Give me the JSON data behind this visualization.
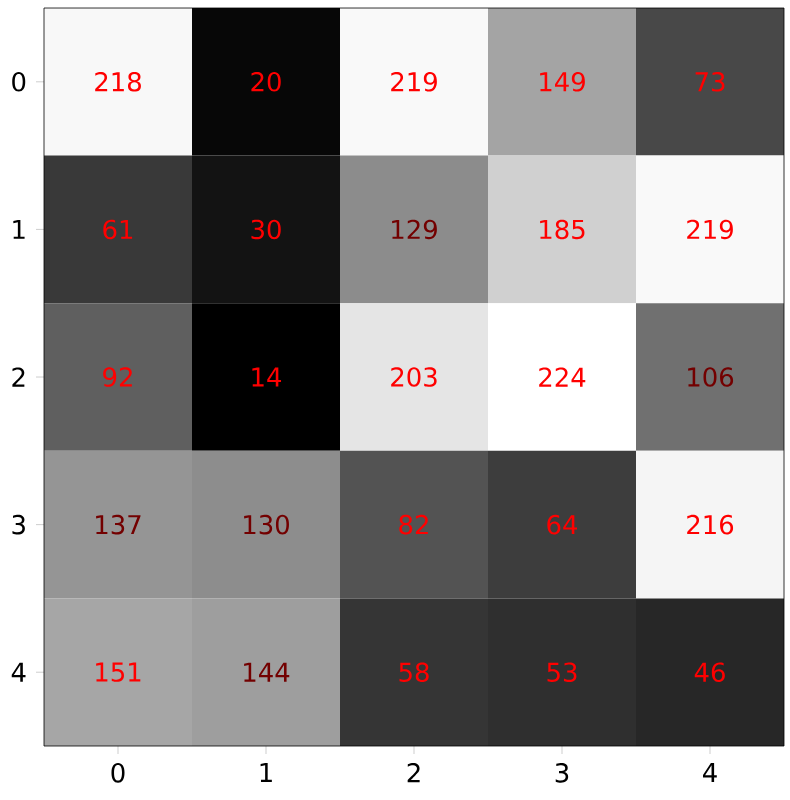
{
  "chart_data": {
    "type": "heatmap",
    "categories": [
      "0",
      "1",
      "2",
      "3",
      "4"
    ],
    "y_categories": [
      "0",
      "1",
      "2",
      "3",
      "4"
    ],
    "cells": [
      [
        218,
        20,
        219,
        149,
        73
      ],
      [
        61,
        30,
        129,
        185,
        219
      ],
      [
        92,
        14,
        203,
        224,
        106
      ],
      [
        137,
        130,
        82,
        64,
        216
      ],
      [
        151,
        144,
        58,
        53,
        46
      ]
    ],
    "data_labels": true
  }
}
